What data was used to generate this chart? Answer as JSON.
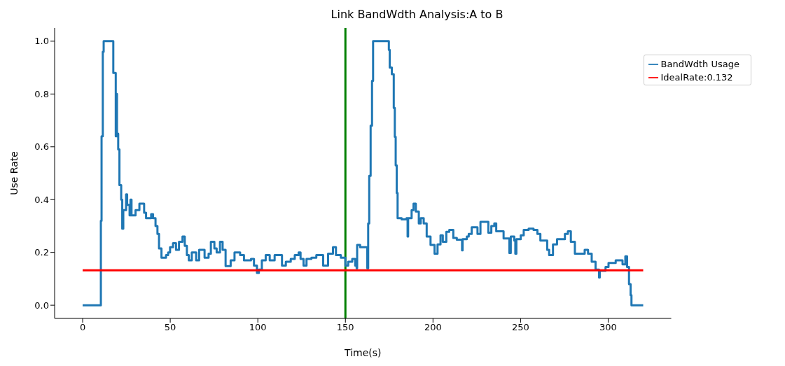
{
  "chart_data": {
    "type": "step",
    "title": "Link BandWdth Analysis:A to B",
    "xlabel": "Time(s)",
    "ylabel": "Use Rate",
    "xlim": [
      -16,
      336
    ],
    "ylim": [
      -0.05,
      1.05
    ],
    "xticks": [
      0,
      50,
      100,
      150,
      200,
      250,
      300
    ],
    "yticks": [
      {
        "value": 0,
        "label": "0.0"
      },
      {
        "value": 0.2,
        "label": "0.2"
      },
      {
        "value": 0.4,
        "label": "0.4"
      },
      {
        "value": 0.6,
        "label": "0.6"
      },
      {
        "value": 0.8,
        "label": "0.8"
      },
      {
        "value": 1,
        "label": "1.0"
      }
    ],
    "grid": false,
    "legend": "top right",
    "marker": "none",
    "line_style": "solid",
    "ref_lines": [
      {
        "axis": "x",
        "value": 150,
        "color": "#008000"
      }
    ],
    "series": [
      {
        "name": "BandWdth Usage",
        "color": "#1f77b4",
        "type": "step",
        "x": [
          0,
          10.4,
          10.8,
          11.5,
          12,
          17.5,
          18.9,
          19.3,
          19.6,
          20.3,
          21,
          22,
          22.6,
          23.2,
          24.8,
          25.4,
          26.8,
          27.3,
          27.9,
          30.2,
          32.4,
          35.1,
          36.2,
          39.1,
          40.2,
          41.6,
          42.7,
          43.6,
          45,
          47.6,
          48.8,
          49.9,
          51.6,
          53.3,
          55,
          57,
          58.3,
          59.5,
          60.6,
          62.3,
          64.8,
          66.5,
          69.6,
          71.9,
          73.2,
          75.2,
          76.5,
          78.4,
          79.9,
          81.6,
          84.5,
          86.7,
          89.9,
          92.1,
          96.1,
          97.8,
          99.5,
          100.6,
          102.3,
          104.5,
          106.8,
          109.6,
          113.8,
          116,
          118.8,
          121.1,
          123.3,
          124.4,
          126.1,
          127.8,
          130.6,
          133.4,
          137.3,
          140.1,
          142.9,
          144.6,
          147.4,
          150,
          151.6,
          153.9,
          155.6,
          156.4,
          156.7,
          158.4,
          162.5,
          163,
          163.6,
          164.4,
          165.2,
          165.8,
          174.8,
          175.3,
          176.5,
          177.6,
          178.2,
          178.7,
          179.3,
          179.8,
          182.1,
          184.9,
          185.5,
          185.8,
          187.8,
          188.9,
          190.2,
          191.9,
          193,
          194.7,
          196.4,
          198.6,
          200.9,
          202.6,
          204.3,
          205.6,
          207.6,
          209.3,
          211.6,
          213.6,
          216.6,
          216.9,
          219.3,
          220.4,
          222.1,
          225.4,
          227.1,
          231.6,
          233.3,
          235,
          236.1,
          240.3,
          243.6,
          244.4,
          246.4,
          247,
          247.6,
          250.1,
          251.8,
          254.6,
          257.4,
          259.6,
          261.3,
          265.2,
          266.3,
          268.5,
          270.8,
          275.3,
          277,
          278.7,
          281,
          286.6,
          288.5,
          290.6,
          292.8,
          294.8,
          295.2,
          298.5,
          300.2,
          304.3,
          308.2,
          309.8,
          310.8,
          311.9,
          312.8,
          313.3,
          320
        ],
        "values": [
          0,
          0.32,
          0.64,
          0.96,
          1,
          0.88,
          0.64,
          0.8,
          0.65,
          0.59,
          0.455,
          0.4,
          0.29,
          0.36,
          0.42,
          0.38,
          0.34,
          0.4,
          0.34,
          0.36,
          0.385,
          0.35,
          0.33,
          0.345,
          0.33,
          0.3,
          0.27,
          0.215,
          0.18,
          0.19,
          0.2,
          0.22,
          0.235,
          0.21,
          0.24,
          0.26,
          0.225,
          0.19,
          0.17,
          0.2,
          0.17,
          0.21,
          0.18,
          0.195,
          0.24,
          0.215,
          0.2,
          0.24,
          0.21,
          0.148,
          0.17,
          0.2,
          0.19,
          0.17,
          0.175,
          0.15,
          0.122,
          0.135,
          0.17,
          0.19,
          0.17,
          0.19,
          0.15,
          0.165,
          0.175,
          0.19,
          0.2,
          0.175,
          0.15,
          0.175,
          0.18,
          0.19,
          0.15,
          0.195,
          0.22,
          0.19,
          0.18,
          0.15,
          0.165,
          0.175,
          0.15,
          0.14,
          0.228,
          0.22,
          0.14,
          0.31,
          0.49,
          0.68,
          0.85,
          1,
          0.967,
          0.9,
          0.875,
          0.747,
          0.638,
          0.53,
          0.425,
          0.33,
          0.325,
          0.33,
          0.26,
          0.33,
          0.36,
          0.385,
          0.355,
          0.31,
          0.33,
          0.31,
          0.26,
          0.228,
          0.195,
          0.23,
          0.265,
          0.24,
          0.278,
          0.285,
          0.255,
          0.248,
          0.208,
          0.25,
          0.26,
          0.27,
          0.295,
          0.27,
          0.316,
          0.275,
          0.3,
          0.31,
          0.28,
          0.253,
          0.198,
          0.26,
          0.245,
          0.195,
          0.25,
          0.265,
          0.285,
          0.29,
          0.285,
          0.27,
          0.245,
          0.21,
          0.19,
          0.23,
          0.25,
          0.27,
          0.28,
          0.24,
          0.195,
          0.21,
          0.195,
          0.165,
          0.135,
          0.105,
          0.13,
          0.145,
          0.16,
          0.17,
          0.155,
          0.185,
          0.145,
          0.08,
          0.038,
          0,
          0
        ]
      },
      {
        "name": "IdealRate:0.132",
        "color": "#ff0000",
        "type": "line",
        "x": [
          0,
          320
        ],
        "values": [
          0.132,
          0.132
        ]
      }
    ]
  }
}
